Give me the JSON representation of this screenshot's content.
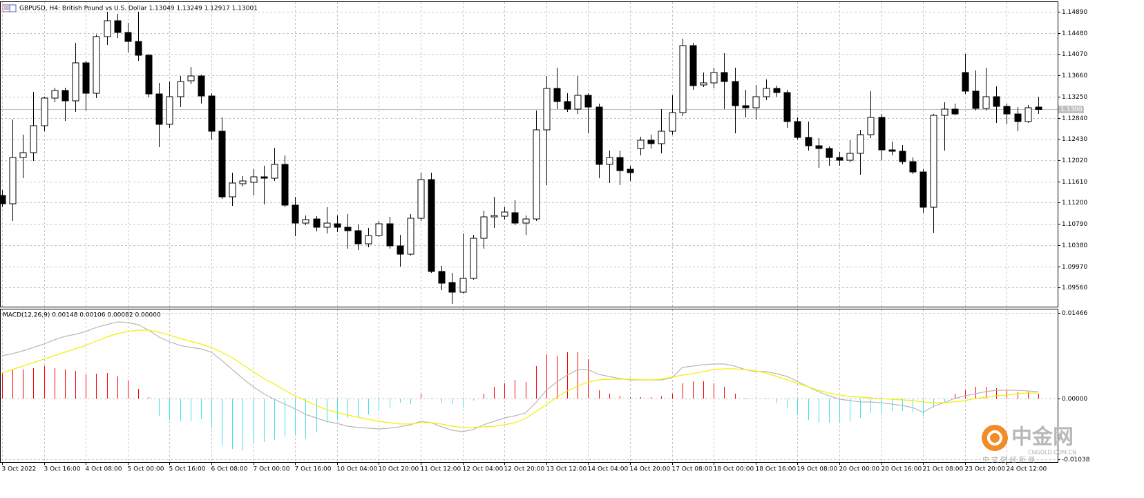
{
  "chart_data": [
    {
      "type": "candlestick",
      "title": "GBPUSD, H4:  British Pound vs U.S. Dollar  1.13049 1.13249 1.12917 1.13001",
      "categories": [
        "3 Oct 2022",
        null,
        null,
        null,
        "3 Oct 16:00",
        null,
        null,
        null,
        "4 Oct 08:00",
        null,
        null,
        null,
        "5 Oct 00:00",
        null,
        null,
        null,
        "5 Oct 16:00",
        null,
        null,
        null,
        "6 Oct 08:00",
        null,
        null,
        null,
        "7 Oct 00:00",
        null,
        null,
        null,
        "7 Oct 16:00",
        null,
        null,
        null,
        "10 Oct 04:00",
        null,
        null,
        null,
        "10 Oct 20:00",
        null,
        null,
        null,
        "11 Oct 12:00",
        null,
        null,
        null,
        "12 Oct 04:00",
        null,
        null,
        null,
        "12 Oct 20:00",
        null,
        null,
        null,
        "13 Oct 12:00",
        null,
        null,
        null,
        "14 Oct 04:00",
        null,
        null,
        null,
        "14 Oct 20:00",
        null,
        null,
        null,
        "17 Oct 08:00",
        null,
        null,
        null,
        "18 Oct 00:00",
        null,
        null,
        null,
        "18 Oct 16:00",
        null,
        null,
        null,
        "19 Oct 08:00",
        null,
        null,
        null,
        "20 Oct 00:00",
        null,
        null,
        null,
        "20 Oct 16:00",
        null,
        null,
        null,
        "21 Oct 08:00",
        null,
        null,
        null,
        "23 Oct 20:00",
        null,
        null,
        null,
        "24 Oct 12:00",
        null,
        null,
        null
      ],
      "open": [
        1.11339,
        1.11179,
        1.12073,
        1.12167,
        1.12687,
        1.13221,
        1.13368,
        1.13167,
        1.13902,
        1.13315,
        1.14409,
        1.14716,
        1.1449,
        1.14316,
        1.14049,
        1.13301,
        1.12714,
        1.13248,
        1.13555,
        1.13649,
        1.13261,
        1.1258,
        1.11312,
        1.11566,
        1.11593,
        1.117,
        1.11673,
        1.1194,
        1.11152,
        1.10805,
        1.10885,
        1.10725,
        1.10792,
        1.10725,
        1.10658,
        1.10404,
        1.10564,
        1.10792,
        1.10364,
        1.10204,
        1.10898,
        1.11646,
        1.0987,
        1.09657,
        1.0947,
        1.09737,
        1.10511,
        1.10925,
        1.10938,
        1.11005,
        1.10805,
        1.10885,
        1.12607,
        1.13408,
        1.13154,
        1.13008,
        1.13274,
        1.13047,
        1.1194,
        1.12073,
        1.11846,
        1.12247,
        1.12407,
        1.1234,
        1.1258,
        1.12941,
        1.14236,
        1.13475,
        1.13515,
        1.13715,
        1.13542,
        1.13074,
        1.13034,
        1.13248,
        1.13408,
        1.13328,
        1.12767,
        1.1246,
        1.123,
        1.12247,
        1.12073,
        1.1202,
        1.12153,
        1.12514,
        1.12848,
        1.1222,
        1.12193,
        1.11993,
        1.11793,
        1.11112,
        1.12888,
        1.13008,
        1.13715,
        1.13355,
        1.13021,
        1.13248,
        1.13061,
        1.12914,
        1.12767,
        1.13049
      ],
      "high": [
        1.11446,
        1.12807,
        1.12514,
        1.13341,
        1.13248,
        1.13422,
        1.13422,
        1.14289,
        1.13942,
        1.1445,
        1.1489,
        1.1485,
        1.14676,
        1.1489,
        1.14076,
        1.13515,
        1.13542,
        1.13649,
        1.13822,
        1.13675,
        1.13315,
        1.12848,
        1.1178,
        1.11713,
        1.11846,
        1.11913,
        1.1226,
        1.12113,
        1.11312,
        1.10952,
        1.10938,
        1.11112,
        1.10952,
        1.10978,
        1.10778,
        1.10712,
        1.10845,
        1.10925,
        1.10578,
        1.10978,
        1.1178,
        1.1178,
        1.09977,
        1.09844,
        1.10604,
        1.10578,
        1.11045,
        1.11312,
        1.11112,
        1.11245,
        1.10952,
        1.12981,
        1.13649,
        1.13809,
        1.13315,
        1.13649,
        1.13315,
        1.13114,
        1.12207,
        1.12207,
        1.11913,
        1.12474,
        1.12514,
        1.13008,
        1.13274,
        1.14369,
        1.14289,
        1.13715,
        1.13809,
        1.14089,
        1.13809,
        1.13382,
        1.13475,
        1.13582,
        1.13462,
        1.13382,
        1.12848,
        1.12767,
        1.12447,
        1.12287,
        1.1218,
        1.12407,
        1.12607,
        1.13355,
        1.12914,
        1.1238,
        1.12314,
        1.12073,
        1.11846,
        1.12914,
        1.13141,
        1.13114,
        1.14076,
        1.13755,
        1.13809,
        1.13448,
        1.13114,
        1.13047,
        1.13087,
        1.13249
      ],
      "low": [
        1.11112,
        1.10845,
        1.11673,
        1.12006,
        1.1258,
        1.13141,
        1.12781,
        1.12954,
        1.12981,
        1.13221,
        1.14249,
        1.14383,
        1.14102,
        1.13942,
        1.13234,
        1.12274,
        1.12647,
        1.13047,
        1.13488,
        1.13114,
        1.1242,
        1.11272,
        1.11138,
        1.11513,
        1.11339,
        1.11165,
        1.1162,
        1.11112,
        1.10551,
        1.10765,
        1.10645,
        1.10604,
        1.10631,
        1.10311,
        1.10284,
        1.10338,
        1.10538,
        1.10311,
        1.09964,
        1.10177,
        1.10845,
        1.09844,
        1.0951,
        1.09243,
        1.09443,
        1.0971,
        1.10311,
        1.10712,
        1.10872,
        1.10765,
        1.10578,
        1.10845,
        1.11539,
        1.13008,
        1.12954,
        1.12914,
        1.1254,
        1.11673,
        1.1158,
        1.11539,
        1.1162,
        1.12113,
        1.12247,
        1.12153,
        1.12514,
        1.12874,
        1.13382,
        1.13435,
        1.13408,
        1.13008,
        1.1254,
        1.12848,
        1.12807,
        1.13181,
        1.13248,
        1.12647,
        1.1242,
        1.12207,
        1.11873,
        1.11913,
        1.11913,
        1.1198,
        1.1174,
        1.12447,
        1.1202,
        1.12113,
        1.1194,
        1.11753,
        1.11005,
        1.10618,
        1.12207,
        1.12888,
        1.13301,
        1.12981,
        1.12981,
        1.12741,
        1.12714,
        1.1258,
        1.12741,
        1.12917
      ],
      "close": [
        1.11179,
        1.12073,
        1.12167,
        1.12687,
        1.13221,
        1.13368,
        1.13167,
        1.13902,
        1.13315,
        1.14409,
        1.14716,
        1.1449,
        1.14316,
        1.14049,
        1.13301,
        1.12714,
        1.13248,
        1.13542,
        1.13649,
        1.13261,
        1.1258,
        1.11312,
        1.1158,
        1.1162,
        1.117,
        1.11673,
        1.1194,
        1.11152,
        1.10805,
        1.10872,
        1.10725,
        1.10805,
        1.10725,
        1.10658,
        1.10404,
        1.10564,
        1.10792,
        1.10364,
        1.10204,
        1.10898,
        1.11646,
        1.0987,
        1.09643,
        1.0947,
        1.09737,
        1.10511,
        1.10925,
        1.10952,
        1.11018,
        1.10805,
        1.10885,
        1.12607,
        1.13408,
        1.13154,
        1.13008,
        1.13274,
        1.13047,
        1.1194,
        1.12073,
        1.1182,
        1.1178,
        1.12407,
        1.1234,
        1.1258,
        1.12941,
        1.14236,
        1.13462,
        1.13515,
        1.13715,
        1.13542,
        1.13074,
        1.13034,
        1.13248,
        1.13408,
        1.13328,
        1.12767,
        1.1246,
        1.123,
        1.12247,
        1.12073,
        1.1202,
        1.12153,
        1.12514,
        1.12848,
        1.1222,
        1.12193,
        1.11993,
        1.11793,
        1.11112,
        1.12888,
        1.13008,
        1.12914,
        1.13355,
        1.13021,
        1.13248,
        1.13061,
        1.12914,
        1.12767,
        1.13034,
        1.13001
      ],
      "ylim": [
        1.0919,
        1.1509
      ],
      "yticks": [
        {
          "value": 1.1489,
          "label": "1.14890"
        },
        {
          "value": 1.1448,
          "label": "1.14480"
        },
        {
          "value": 1.1407,
          "label": "1.14070"
        },
        {
          "value": 1.1366,
          "label": "1.13660"
        },
        {
          "value": 1.1325,
          "label": "1.13250"
        },
        {
          "value": 1.1284,
          "label": "1.12840"
        },
        {
          "value": 1.1243,
          "label": "1.12430"
        },
        {
          "value": 1.1202,
          "label": "1.12020"
        },
        {
          "value": 1.1161,
          "label": "1.11610"
        },
        {
          "value": 1.112,
          "label": "1.11200"
        },
        {
          "value": 1.1079,
          "label": "1.10790"
        },
        {
          "value": 1.1038,
          "label": "1.10380"
        },
        {
          "value": 1.0997,
          "label": "1.09970"
        },
        {
          "value": 1.0956,
          "label": "1.09560"
        }
      ],
      "last_price": 1.13001,
      "up_color": "#ffffff",
      "down_color": "#000000",
      "grid": true
    },
    {
      "type": "macd",
      "title": "MACD(12,26,9) 0.00148 0.00106 0.00082 0.00000",
      "histogram": [
        0.00437,
        0.00496,
        0.00496,
        0.0052,
        0.00556,
        0.0052,
        0.00496,
        0.00473,
        0.00414,
        0.00426,
        0.00437,
        0.00378,
        0.00307,
        0.00165,
        0.00024,
        -0.00296,
        -0.00366,
        -0.0039,
        -0.0039,
        -0.00355,
        -0.00508,
        -0.00804,
        -0.00863,
        -0.00887,
        -0.00768,
        -0.00745,
        -0.00709,
        -0.0065,
        -0.00626,
        -0.00686,
        -0.00567,
        -0.00414,
        -0.00366,
        -0.00331,
        -0.00331,
        -0.00272,
        -0.00213,
        -0.00154,
        -0.00071,
        -0.00095,
        0.00083,
        -0.00012,
        -0.00071,
        -0.00095,
        -0.00154,
        -0.00035,
        0.00083,
        0.00201,
        0.0026,
        0.00319,
        0.00284,
        0.00556,
        0.00756,
        0.00733,
        0.00792,
        0.00792,
        0.00674,
        0.00142,
        0.00083,
        0.00047,
        0.00024,
        0.00024,
        0.00024,
        0.00035,
        0.00083,
        0.0026,
        0.00296,
        0.00296,
        0.0026,
        0.00201,
        0.00083,
        0.00012,
        -0.00012,
        -0.00012,
        -0.00083,
        -0.00154,
        -0.00272,
        -0.00366,
        -0.00414,
        -0.00414,
        -0.00414,
        -0.0039,
        -0.00331,
        -0.00248,
        -0.00248,
        -0.00213,
        -0.00213,
        -0.00236,
        -0.00307,
        -0.00154,
        -0.00059,
        0.00083,
        0.00142,
        0.00201,
        0.00201,
        0.00177,
        0.00142,
        0.00118,
        0.00118,
        0.00083
      ],
      "macd": [
        0.00733,
        0.00768,
        0.00816,
        0.00875,
        0.00934,
        0.01005,
        0.01064,
        0.01099,
        0.01147,
        0.01217,
        0.01265,
        0.01312,
        0.013,
        0.01265,
        0.0117,
        0.01052,
        0.00969,
        0.0091,
        0.00875,
        0.00851,
        0.00792,
        0.0065,
        0.00496,
        0.00343,
        0.00201,
        0.00083,
        -0.00012,
        -0.00095,
        -0.00177,
        -0.00272,
        -0.00331,
        -0.0039,
        -0.00426,
        -0.00473,
        -0.00496,
        -0.00508,
        -0.0052,
        -0.00508,
        -0.00485,
        -0.00449,
        -0.0039,
        -0.00414,
        -0.00485,
        -0.00544,
        -0.00567,
        -0.00532,
        -0.00449,
        -0.0039,
        -0.00331,
        -0.00296,
        -0.00248,
        -0.00071,
        0.00142,
        0.00284,
        0.00402,
        0.00496,
        0.00496,
        0.00414,
        0.00378,
        0.00343,
        0.00319,
        0.00319,
        0.00319,
        0.00319,
        0.00355,
        0.00532,
        0.00556,
        0.00579,
        0.00591,
        0.00591,
        0.00556,
        0.00496,
        0.00461,
        0.00461,
        0.00426,
        0.00378,
        0.00296,
        0.00201,
        0.00118,
        0.00047,
        -0.00012,
        -0.00035,
        -0.00059,
        -0.00059,
        -0.00071,
        -0.00095,
        -0.00118,
        -0.00154,
        -0.00236,
        -0.0013,
        -0.00071,
        0,
        0.00047,
        0.00083,
        0.00118,
        0.00142,
        0.00142,
        0.00142,
        0.0013,
        0.00118
      ],
      "signal": [
        0.00437,
        0.00496,
        0.00556,
        0.00615,
        0.00674,
        0.00733,
        0.00792,
        0.00851,
        0.0091,
        0.00981,
        0.01052,
        0.01111,
        0.01147,
        0.0117,
        0.0117,
        0.01135,
        0.01087,
        0.01028,
        0.00981,
        0.00934,
        0.00875,
        0.00792,
        0.00697,
        0.00579,
        0.00461,
        0.00343,
        0.00248,
        0.00142,
        0.00047,
        -0.00035,
        -0.00118,
        -0.00189,
        -0.00236,
        -0.00284,
        -0.00319,
        -0.00355,
        -0.0039,
        -0.00414,
        -0.00437,
        -0.00437,
        -0.00414,
        -0.00414,
        -0.00437,
        -0.00473,
        -0.00496,
        -0.00496,
        -0.00485,
        -0.00473,
        -0.00449,
        -0.00414,
        -0.00343,
        -0.00225,
        -0.00106,
        0.00024,
        0.0013,
        0.00213,
        0.00284,
        0.00319,
        0.00331,
        0.00331,
        0.00331,
        0.00319,
        0.00319,
        0.00331,
        0.00366,
        0.00402,
        0.00426,
        0.00461,
        0.00496,
        0.00508,
        0.00508,
        0.00496,
        0.00473,
        0.00437,
        0.00378,
        0.00319,
        0.0026,
        0.00201,
        0.00142,
        0.00095,
        0.00059,
        0.00035,
        0.00024,
        0.00012,
        0,
        -0.00012,
        -0.00024,
        -0.00035,
        -0.00059,
        -0.00071,
        -0.00071,
        -0.00059,
        -0.00035,
        0,
        0.00024,
        0.00047,
        0.00059,
        0.00083,
        0.00095,
        0.00095
      ],
      "ylim": [
        -0.01088,
        0.01537
      ],
      "yticks": [
        0.01466,
        {
          "value": 0,
          "label": "0.00000"
        },
        -0.01038
      ],
      "positive_color": "#ff0000",
      "negative_color": "#40e0e8",
      "macd_color": "#b8b8b8",
      "signal_color": "#f0f000",
      "grid": true
    }
  ],
  "watermark": {
    "brand": "中金网",
    "domain": "CNGOLD.COM.CN",
    "slogan": "中 文 财 经 新 闻"
  }
}
